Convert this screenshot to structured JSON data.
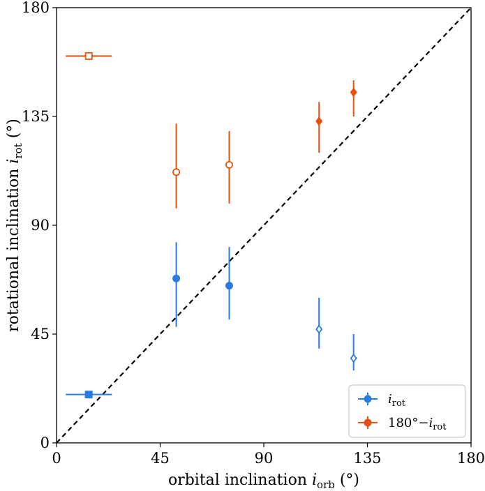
{
  "chart_data": {
    "type": "scatter",
    "title": "",
    "xlabel": {
      "main": "orbital inclination ",
      "sym": "i",
      "sub": "orb",
      "unit": " (°)"
    },
    "ylabel": {
      "main": "rotational inclination ",
      "sym": "i",
      "sub": "rot",
      "unit": " (°)"
    },
    "xlim": [
      0,
      180
    ],
    "ylim": [
      0,
      180
    ],
    "xticks": [
      0,
      45,
      90,
      135,
      180
    ],
    "yticks": [
      0,
      45,
      90,
      135,
      180
    ],
    "grid": false,
    "legend_position": "bottom-right",
    "reference_line": {
      "style": "dashed",
      "color": "#000000",
      "from": [
        0,
        0
      ],
      "to": [
        180,
        180
      ]
    },
    "series": [
      {
        "name": {
          "sym": "i",
          "sub": "rot",
          "prefix": ""
        },
        "color": "#2a7ae2",
        "points": [
          {
            "x": 14,
            "y": 20,
            "xerr": [
              10,
              10
            ],
            "yerr": [
              1,
              1
            ],
            "marker": "square",
            "filled": true
          },
          {
            "x": 52,
            "y": 68,
            "xerr": [
              0,
              0
            ],
            "yerr": [
              20,
              15
            ],
            "marker": "circle",
            "filled": true
          },
          {
            "x": 75,
            "y": 65,
            "xerr": [
              0,
              0
            ],
            "yerr": [
              14,
              16
            ],
            "marker": "circle",
            "filled": true
          },
          {
            "x": 114,
            "y": 47,
            "xerr": [
              0,
              0
            ],
            "yerr": [
              8,
              13
            ],
            "marker": "diamond",
            "filled": false
          },
          {
            "x": 129,
            "y": 35,
            "xerr": [
              0,
              0
            ],
            "yerr": [
              5,
              10
            ],
            "marker": "diamond",
            "filled": false
          }
        ]
      },
      {
        "name": {
          "sym": "i",
          "sub": "rot",
          "prefix": "180°−"
        },
        "color": "#e8500f",
        "points": [
          {
            "x": 14,
            "y": 160,
            "xerr": [
              10,
              10
            ],
            "yerr": [
              1,
              1
            ],
            "marker": "square",
            "filled": false
          },
          {
            "x": 52,
            "y": 112,
            "xerr": [
              0,
              0
            ],
            "yerr": [
              15,
              20
            ],
            "marker": "circle",
            "filled": false
          },
          {
            "x": 75,
            "y": 115,
            "xerr": [
              0,
              0
            ],
            "yerr": [
              16,
              14
            ],
            "marker": "circle",
            "filled": false
          },
          {
            "x": 114,
            "y": 133,
            "xerr": [
              0,
              0
            ],
            "yerr": [
              13,
              8
            ],
            "marker": "diamond",
            "filled": true
          },
          {
            "x": 129,
            "y": 145,
            "xerr": [
              0,
              0
            ],
            "yerr": [
              10,
              5
            ],
            "marker": "diamond",
            "filled": true
          }
        ]
      }
    ]
  }
}
